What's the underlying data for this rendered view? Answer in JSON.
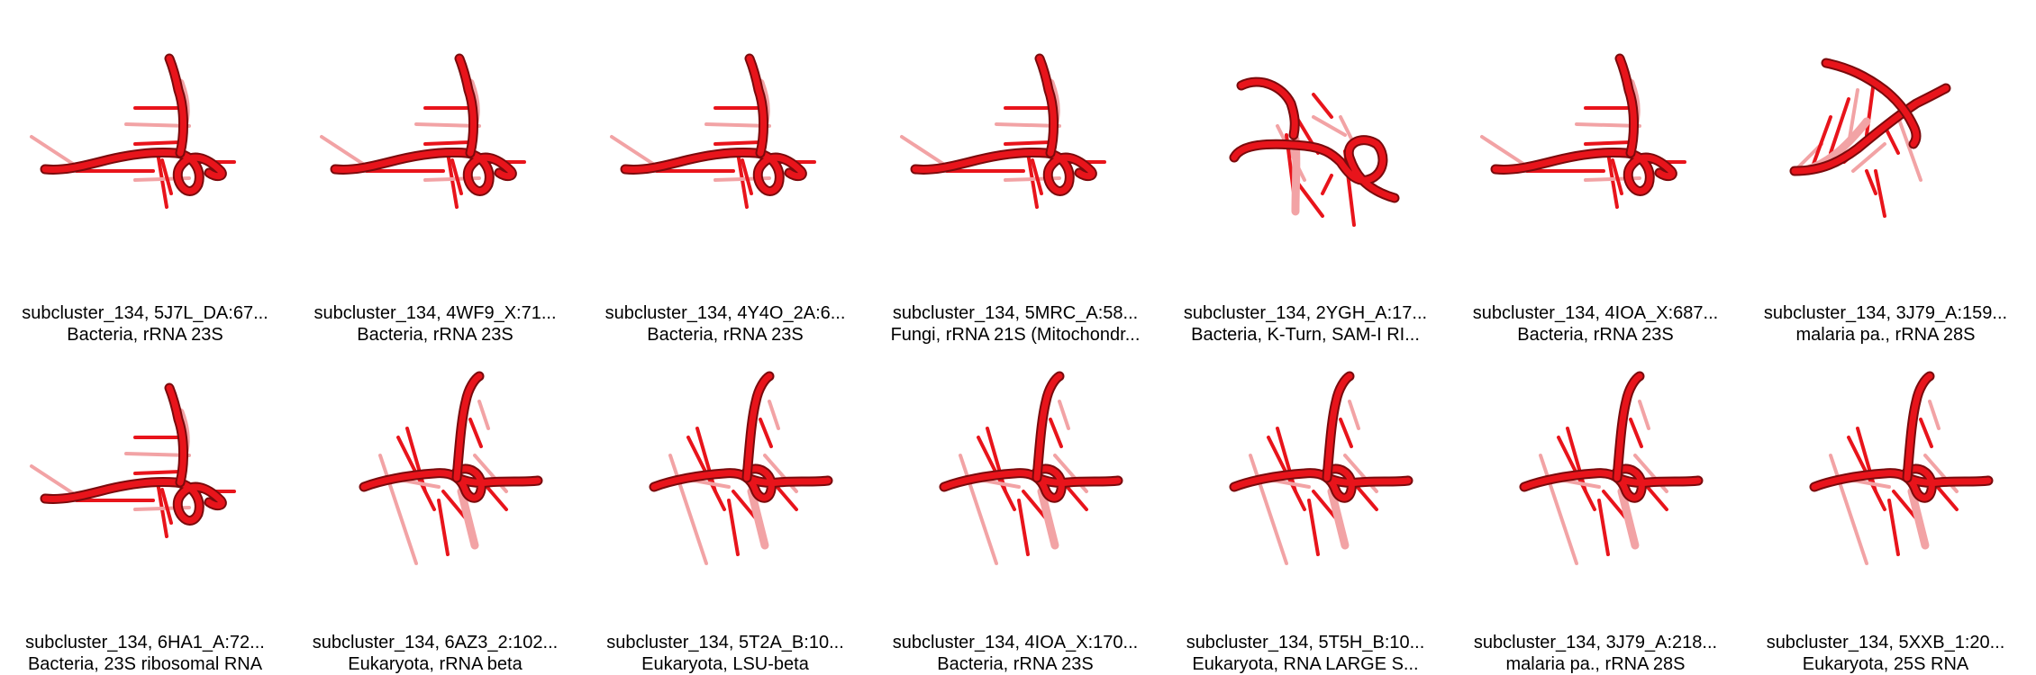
{
  "tiles": [
    {
      "line1": "subcluster_134, 5J7L_DA:67...",
      "line2": "Bacteria, rRNA 23S",
      "shape": "a"
    },
    {
      "line1": "subcluster_134, 4WF9_X:71...",
      "line2": "Bacteria, rRNA 23S",
      "shape": "a"
    },
    {
      "line1": "subcluster_134, 4Y4O_2A:6...",
      "line2": "Bacteria, rRNA 23S",
      "shape": "a"
    },
    {
      "line1": "subcluster_134, 5MRC_A:58...",
      "line2": "Fungi, rRNA 21S (Mitochondr...",
      "shape": "a"
    },
    {
      "line1": "subcluster_134, 2YGH_A:17...",
      "line2": "Bacteria, K-Turn, SAM-I RI...",
      "shape": "b"
    },
    {
      "line1": "subcluster_134, 4IOA_X:687...",
      "line2": "Bacteria, rRNA 23S",
      "shape": "a"
    },
    {
      "line1": "subcluster_134, 3J79_A:159...",
      "line2": "malaria pa., rRNA 28S",
      "shape": "c"
    },
    {
      "line1": "subcluster_134, 6HA1_A:72...",
      "line2": "Bacteria, 23S ribosomal RNA",
      "shape": "a"
    },
    {
      "line1": "subcluster_134, 6AZ3_2:102...",
      "line2": "Eukaryota, rRNA beta",
      "shape": "d"
    },
    {
      "line1": "subcluster_134, 5T2A_B:10...",
      "line2": "Eukaryota, LSU-beta",
      "shape": "d"
    },
    {
      "line1": "subcluster_134, 4IOA_X:170...",
      "line2": "Bacteria, rRNA 23S",
      "shape": "d"
    },
    {
      "line1": "subcluster_134, 5T5H_B:10...",
      "line2": "Eukaryota, RNA LARGE S...",
      "shape": "d"
    },
    {
      "line1": "subcluster_134, 3J79_A:218...",
      "line2": "malaria pa., rRNA 28S",
      "shape": "d"
    },
    {
      "line1": "subcluster_134, 5XXB_1:20...",
      "line2": "Eukaryota, 25S RNA",
      "shape": "d"
    }
  ],
  "colors": {
    "strand": "#e8141b",
    "strand_dark": "#7a0a0c",
    "strand_light": "#f2a3a5"
  }
}
